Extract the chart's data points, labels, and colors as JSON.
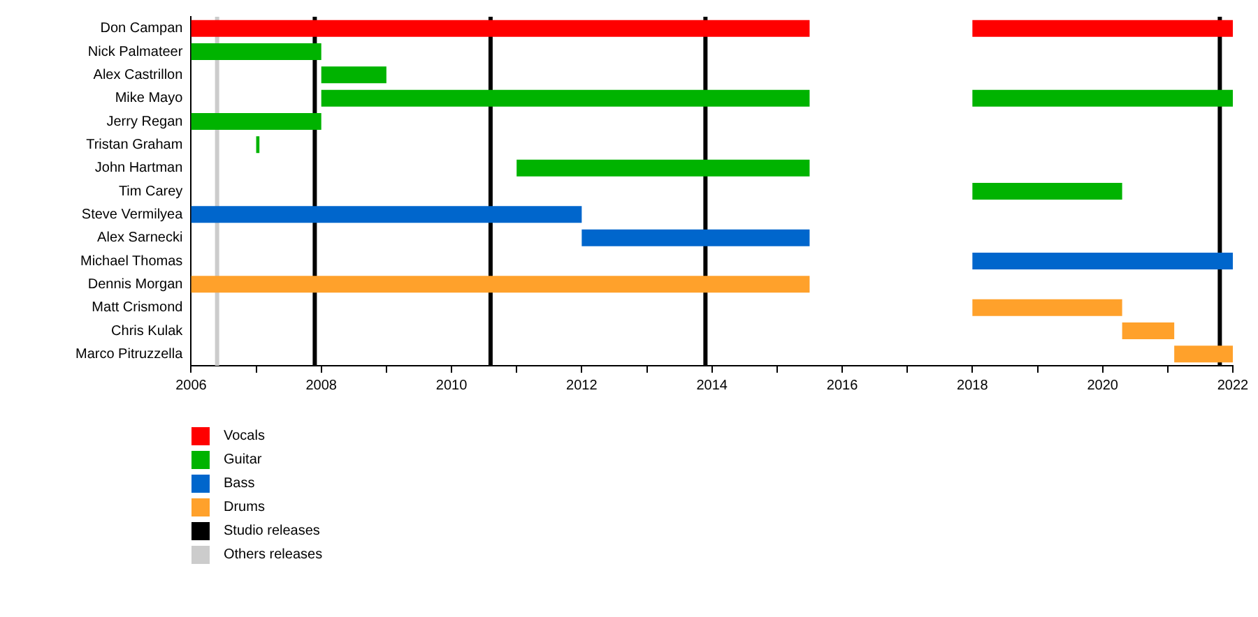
{
  "chart_data": {
    "type": "bar",
    "orientation": "horizontal",
    "legend": "bottom left",
    "categories": [
      "Don Campan",
      "Nick Palmateer",
      "Alex Castrillon",
      "Mike Mayo",
      "Jerry Regan",
      "Tristan Graham",
      "John Hartman",
      "Tim Carey",
      "Steve Vermilyea",
      "Alex Sarnecki",
      "Michael Thomas",
      "Dennis Morgan",
      "Matt Crismond",
      "Chris Kulak",
      "Marco Pitruzzella"
    ],
    "series": [
      {
        "name": "Vocals",
        "color": "#ff0000",
        "base": [
          2006,
          null,
          null,
          null,
          null,
          null,
          null,
          null,
          null,
          null,
          null,
          null,
          null,
          null,
          null
        ],
        "values": [
          9.5,
          null,
          null,
          null,
          null,
          null,
          null,
          null,
          null,
          null,
          null,
          null,
          null,
          null,
          null
        ]
      },
      {
        "name": "Guitar",
        "color": "#00b300",
        "base": [
          null,
          2006,
          2008,
          2008,
          2006,
          2007,
          2011,
          2018,
          null,
          null,
          null,
          null,
          null,
          null,
          null
        ],
        "values": [
          null,
          2,
          1,
          7.5,
          2,
          0.05,
          4.5,
          2.3,
          null,
          null,
          null,
          null,
          null,
          null,
          null
        ]
      },
      {
        "name": "Bass",
        "color": "#0066cc",
        "base": [
          null,
          null,
          null,
          null,
          null,
          null,
          null,
          null,
          2006,
          2012,
          2018,
          null,
          null,
          null,
          null
        ],
        "values": [
          null,
          null,
          null,
          null,
          null,
          null,
          null,
          null,
          6,
          3.5,
          4,
          null,
          null,
          null,
          null
        ]
      },
      {
        "name": "Drums",
        "color": "#ffa12b",
        "base": [
          null,
          null,
          null,
          null,
          null,
          null,
          null,
          null,
          null,
          null,
          null,
          2006,
          2018,
          2020.3,
          2021.1
        ],
        "values": [
          null,
          null,
          null,
          null,
          null,
          null,
          null,
          null,
          null,
          null,
          null,
          9.5,
          2.3,
          0.8,
          0.9
        ]
      },
      {
        "color": "#ff0000",
        "base": [
          2018,
          null,
          null,
          null,
          null,
          null,
          null,
          null,
          null,
          null,
          null,
          null,
          null,
          null,
          null
        ],
        "values": [
          4,
          null,
          null,
          null,
          null,
          null,
          null,
          null,
          null,
          null,
          null,
          null,
          null,
          null,
          null
        ]
      },
      {
        "color": "#00b300",
        "base": [
          null,
          null,
          null,
          2018,
          null,
          null,
          null,
          null,
          null,
          null,
          null,
          null,
          null,
          null,
          null
        ],
        "values": [
          null,
          null,
          null,
          4,
          null,
          null,
          null,
          null,
          null,
          null,
          null,
          null,
          null,
          null,
          null
        ]
      }
    ],
    "xlim": [
      2006,
      2022
    ],
    "xticks": [
      2006,
      {
        "value": 2007,
        "label": null
      },
      2008,
      {
        "value": 2009,
        "label": null
      },
      2010,
      {
        "value": 2011,
        "label": null
      },
      2012,
      {
        "value": 2013,
        "label": null
      },
      2014,
      {
        "value": 2015,
        "label": null
      },
      2016,
      {
        "value": 2017,
        "label": null
      },
      2018,
      {
        "value": 2019,
        "label": null
      },
      2020,
      {
        "value": 2021,
        "label": null
      },
      2022
    ],
    "ref_lines": [
      {
        "axis": "x",
        "value": 2007.9,
        "label": "Studio releases",
        "color": "#000000"
      },
      {
        "axis": "x",
        "value": 2010.6,
        "color": "#000000"
      },
      {
        "axis": "x",
        "value": 2013.9,
        "color": "#000000"
      },
      {
        "axis": "x",
        "value": 2006.4,
        "label": "Others releases",
        "color": "#cccccc"
      },
      {
        "axis": "x",
        "value": 2021.8,
        "color": "#000000"
      }
    ]
  }
}
